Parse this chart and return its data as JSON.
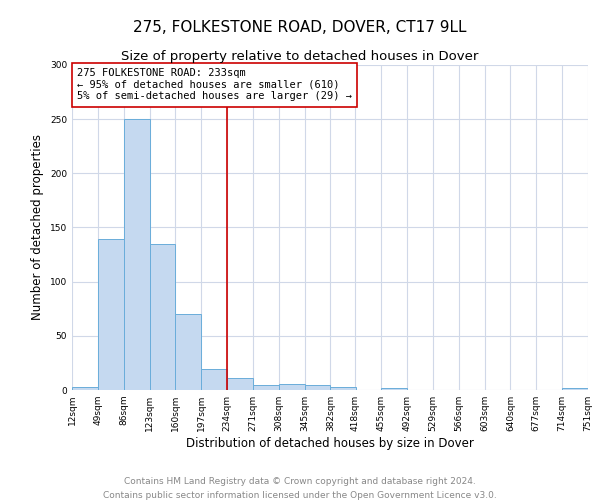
{
  "title": "275, FOLKESTONE ROAD, DOVER, CT17 9LL",
  "subtitle": "Size of property relative to detached houses in Dover",
  "xlabel": "Distribution of detached houses by size in Dover",
  "ylabel": "Number of detached properties",
  "bin_edges": [
    12,
    49,
    86,
    123,
    160,
    197,
    234,
    271,
    308,
    345,
    382,
    418,
    455,
    492,
    529,
    566,
    603,
    640,
    677,
    714,
    751
  ],
  "bin_counts": [
    3,
    139,
    250,
    135,
    70,
    19,
    11,
    5,
    6,
    5,
    3,
    0,
    2,
    0,
    0,
    0,
    0,
    0,
    0,
    2
  ],
  "bar_color": "#c5d9f0",
  "bar_edge_color": "#6aadda",
  "bar_edge_width": 0.7,
  "vline_x": 234,
  "vline_color": "#cc0000",
  "vline_linewidth": 1.2,
  "annotation_text": "275 FOLKESTONE ROAD: 233sqm\n← 95% of detached houses are smaller (610)\n5% of semi-detached houses are larger (29) →",
  "annotation_box_color": "#ffffff",
  "annotation_box_edge_color": "#cc0000",
  "ylim": [
    0,
    300
  ],
  "yticks": [
    0,
    50,
    100,
    150,
    200,
    250,
    300
  ],
  "tick_labels": [
    "12sqm",
    "49sqm",
    "86sqm",
    "123sqm",
    "160sqm",
    "197sqm",
    "234sqm",
    "271sqm",
    "308sqm",
    "345sqm",
    "382sqm",
    "418sqm",
    "455sqm",
    "492sqm",
    "529sqm",
    "566sqm",
    "603sqm",
    "640sqm",
    "677sqm",
    "714sqm",
    "751sqm"
  ],
  "footer1": "Contains HM Land Registry data © Crown copyright and database right 2024.",
  "footer2": "Contains public sector information licensed under the Open Government Licence v3.0.",
  "bg_color": "#ffffff",
  "grid_color": "#d0d8e8",
  "title_fontsize": 11,
  "subtitle_fontsize": 9.5,
  "axis_label_fontsize": 8.5,
  "tick_fontsize": 6.5,
  "annotation_fontsize": 7.5,
  "footer_fontsize": 6.5
}
